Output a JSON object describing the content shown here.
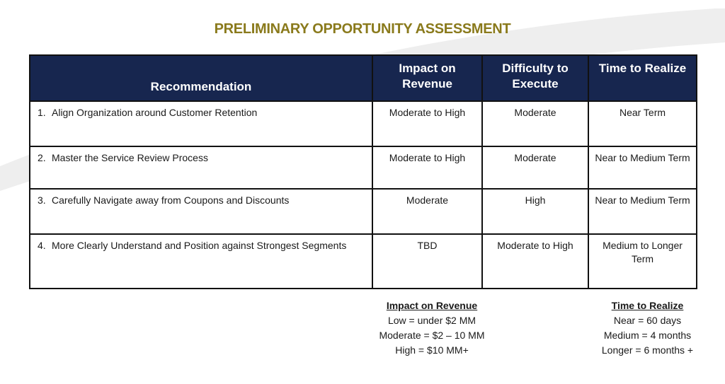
{
  "title": "PRELIMINARY OPPORTUNITY ASSESSMENT",
  "headers": {
    "recommendation": "Recommendation",
    "impact": "Impact on Revenue",
    "difficulty": "Difficulty to Execute",
    "time": "Time to Realize"
  },
  "rows": [
    {
      "num": "1.",
      "recommendation": "Align Organization around Customer Retention",
      "impact": "Moderate to High",
      "difficulty": "Moderate",
      "time": "Near Term"
    },
    {
      "num": "2.",
      "recommendation": "Master the Service Review Process",
      "impact": "Moderate to High",
      "difficulty": "Moderate",
      "time": "Near to Medium Term"
    },
    {
      "num": "3.",
      "recommendation": "Carefully Navigate away from Coupons and Discounts",
      "impact": "Moderate",
      "difficulty": "High",
      "time": "Near to Medium Term"
    },
    {
      "num": "4.",
      "recommendation": "More Clearly Understand and Position against Strongest Segments",
      "impact": "TBD",
      "difficulty": "Moderate to High",
      "time": "Medium to Longer Term"
    }
  ],
  "legend_revenue": {
    "heading": "Impact on Revenue",
    "lines": [
      "Low = under $2 MM",
      "Moderate = $2 – 10 MM",
      "High = $10 MM+"
    ]
  },
  "legend_time": {
    "heading": "Time to Realize",
    "lines": [
      "Near = 60 days",
      "Medium = 4 months",
      "Longer = 6 months +"
    ]
  },
  "colors": {
    "title": "#8a7a1c",
    "header_bg": "#17264f",
    "header_text": "#ffffff",
    "background_swoosh": "#ececec"
  }
}
